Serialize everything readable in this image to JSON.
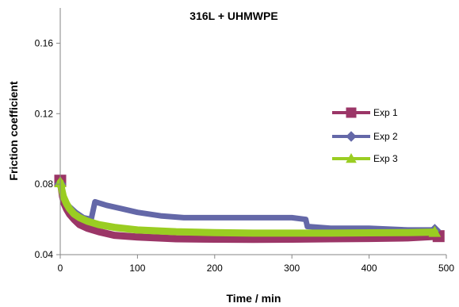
{
  "chart_data": {
    "type": "line",
    "title": "316L + UHMWPE",
    "xlabel": "Time / min",
    "ylabel": "Friction coefficient",
    "xlim": [
      0,
      500
    ],
    "ylim": [
      0.04,
      0.18
    ],
    "x_ticks": [
      "0",
      "100",
      "200",
      "300",
      "400",
      "500"
    ],
    "y_ticks": [
      "0.04",
      "0.08",
      "0.12",
      "0.16"
    ],
    "x_tick_values": [
      0,
      100,
      200,
      300,
      400,
      500
    ],
    "y_tick_values": [
      0.04,
      0.08,
      0.12,
      0.16
    ],
    "grid": false,
    "legend_position": "right",
    "series": [
      {
        "name": "Exp 1",
        "color": "#9b3667",
        "marker": "square",
        "x": [
          0,
          1,
          3,
          5,
          8,
          12,
          18,
          25,
          35,
          50,
          70,
          100,
          150,
          200,
          250,
          300,
          350,
          400,
          450,
          490
        ],
        "y": [
          0.082,
          0.079,
          0.073,
          0.069,
          0.066,
          0.063,
          0.06,
          0.057,
          0.055,
          0.053,
          0.051,
          0.05,
          0.049,
          0.0488,
          0.0487,
          0.0488,
          0.049,
          0.0492,
          0.0495,
          0.0505
        ]
      },
      {
        "name": "Exp 2",
        "color": "#6468a8",
        "marker": "diamond",
        "x": [
          0,
          2,
          5,
          10,
          20,
          30,
          40,
          45,
          60,
          80,
          100,
          130,
          160,
          200,
          250,
          300,
          318,
          320,
          350,
          400,
          450,
          485
        ],
        "y": [
          0.08,
          0.076,
          0.072,
          0.068,
          0.064,
          0.061,
          0.06,
          0.07,
          0.068,
          0.066,
          0.064,
          0.062,
          0.061,
          0.061,
          0.061,
          0.061,
          0.06,
          0.056,
          0.055,
          0.055,
          0.054,
          0.054
        ]
      },
      {
        "name": "Exp 3",
        "color": "#9acd22",
        "marker": "triangle",
        "x": [
          0,
          2,
          4,
          8,
          12,
          18,
          25,
          35,
          50,
          70,
          100,
          150,
          200,
          250,
          300,
          350,
          400,
          450,
          485
        ],
        "y": [
          0.081,
          0.077,
          0.073,
          0.069,
          0.066,
          0.063,
          0.061,
          0.059,
          0.057,
          0.0555,
          0.054,
          0.053,
          0.0525,
          0.0522,
          0.0522,
          0.0522,
          0.0524,
          0.0525,
          0.0528
        ]
      }
    ]
  }
}
